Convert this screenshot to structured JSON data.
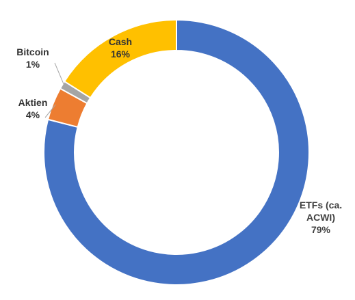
{
  "chart_data": {
    "type": "pie",
    "variant": "donut",
    "title": "",
    "categories": [
      "ETFs (ca. ACWI)",
      "Aktien",
      "Bitcoin",
      "Cash"
    ],
    "values": [
      79,
      4,
      1,
      16
    ],
    "unit": "%",
    "colors": [
      "#4472C4",
      "#ED7D31",
      "#A5A5A5",
      "#FFC000"
    ],
    "slice_border_color": "#FFFFFF",
    "legend": "none",
    "labels": [
      {
        "name_lines": [
          "ETFs (ca.",
          "ACWI)"
        ],
        "value": "79%"
      },
      {
        "name_lines": [
          "Aktien"
        ],
        "value": "4%"
      },
      {
        "name_lines": [
          "Bitcoin"
        ],
        "value": "1%"
      },
      {
        "name_lines": [
          "Cash"
        ],
        "value": "16%"
      }
    ]
  }
}
